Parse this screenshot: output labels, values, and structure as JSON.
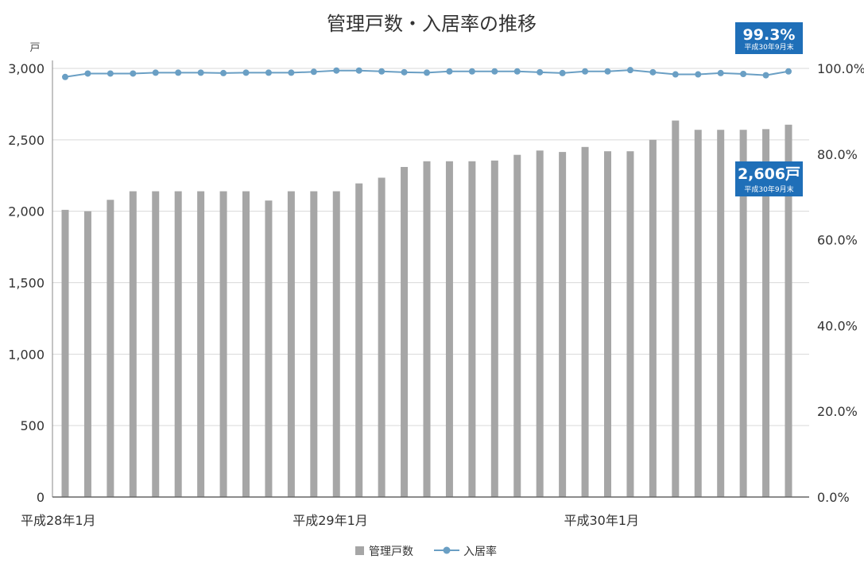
{
  "chart_data": {
    "type": "bar",
    "title": "管理戸数・入居率の推移",
    "y_unit_left": "戸",
    "ylim_left": [
      0,
      3000
    ],
    "yticks_left": [
      "0",
      "500",
      "1,000",
      "1,500",
      "2,000",
      "2,500",
      "3,000"
    ],
    "ylim_right": [
      0,
      100
    ],
    "yticks_right": [
      "0.0%",
      "20.0%",
      "40.0%",
      "60.0%",
      "80.0%",
      "100.0%"
    ],
    "x_tick_labels": [
      {
        "index": 0,
        "label": "平成28年1月"
      },
      {
        "index": 12,
        "label": "平成29年1月"
      },
      {
        "index": 24,
        "label": "平成30年1月"
      }
    ],
    "grid": true,
    "legend_position": "bottom",
    "series": [
      {
        "name": "管理戸数",
        "type": "bar",
        "axis": "left",
        "color": "#a6a6a6",
        "values": [
          2010,
          2000,
          2080,
          2140,
          2140,
          2140,
          2140,
          2140,
          2140,
          2075,
          2140,
          2140,
          2140,
          2195,
          2235,
          2310,
          2350,
          2350,
          2350,
          2355,
          2395,
          2425,
          2415,
          2450,
          2420,
          2420,
          2500,
          2635,
          2570,
          2570,
          2570,
          2575,
          2606
        ]
      },
      {
        "name": "入居率",
        "type": "line",
        "axis": "right",
        "color": "#6a9fc4",
        "values": [
          98.0,
          98.8,
          98.8,
          98.8,
          99.0,
          99.0,
          99.0,
          98.9,
          99.0,
          99.0,
          99.0,
          99.2,
          99.5,
          99.5,
          99.3,
          99.1,
          99.0,
          99.3,
          99.3,
          99.3,
          99.3,
          99.1,
          98.9,
          99.3,
          99.3,
          99.6,
          99.1,
          98.6,
          98.6,
          98.9,
          98.7,
          98.4,
          99.3
        ]
      }
    ],
    "callouts": [
      {
        "value": "99.3%",
        "note": "平成30年9月末",
        "color": "#1f6fb8"
      },
      {
        "value": "2,606戸",
        "note": "平成30年9月末",
        "color": "#1f6fb8"
      }
    ]
  }
}
